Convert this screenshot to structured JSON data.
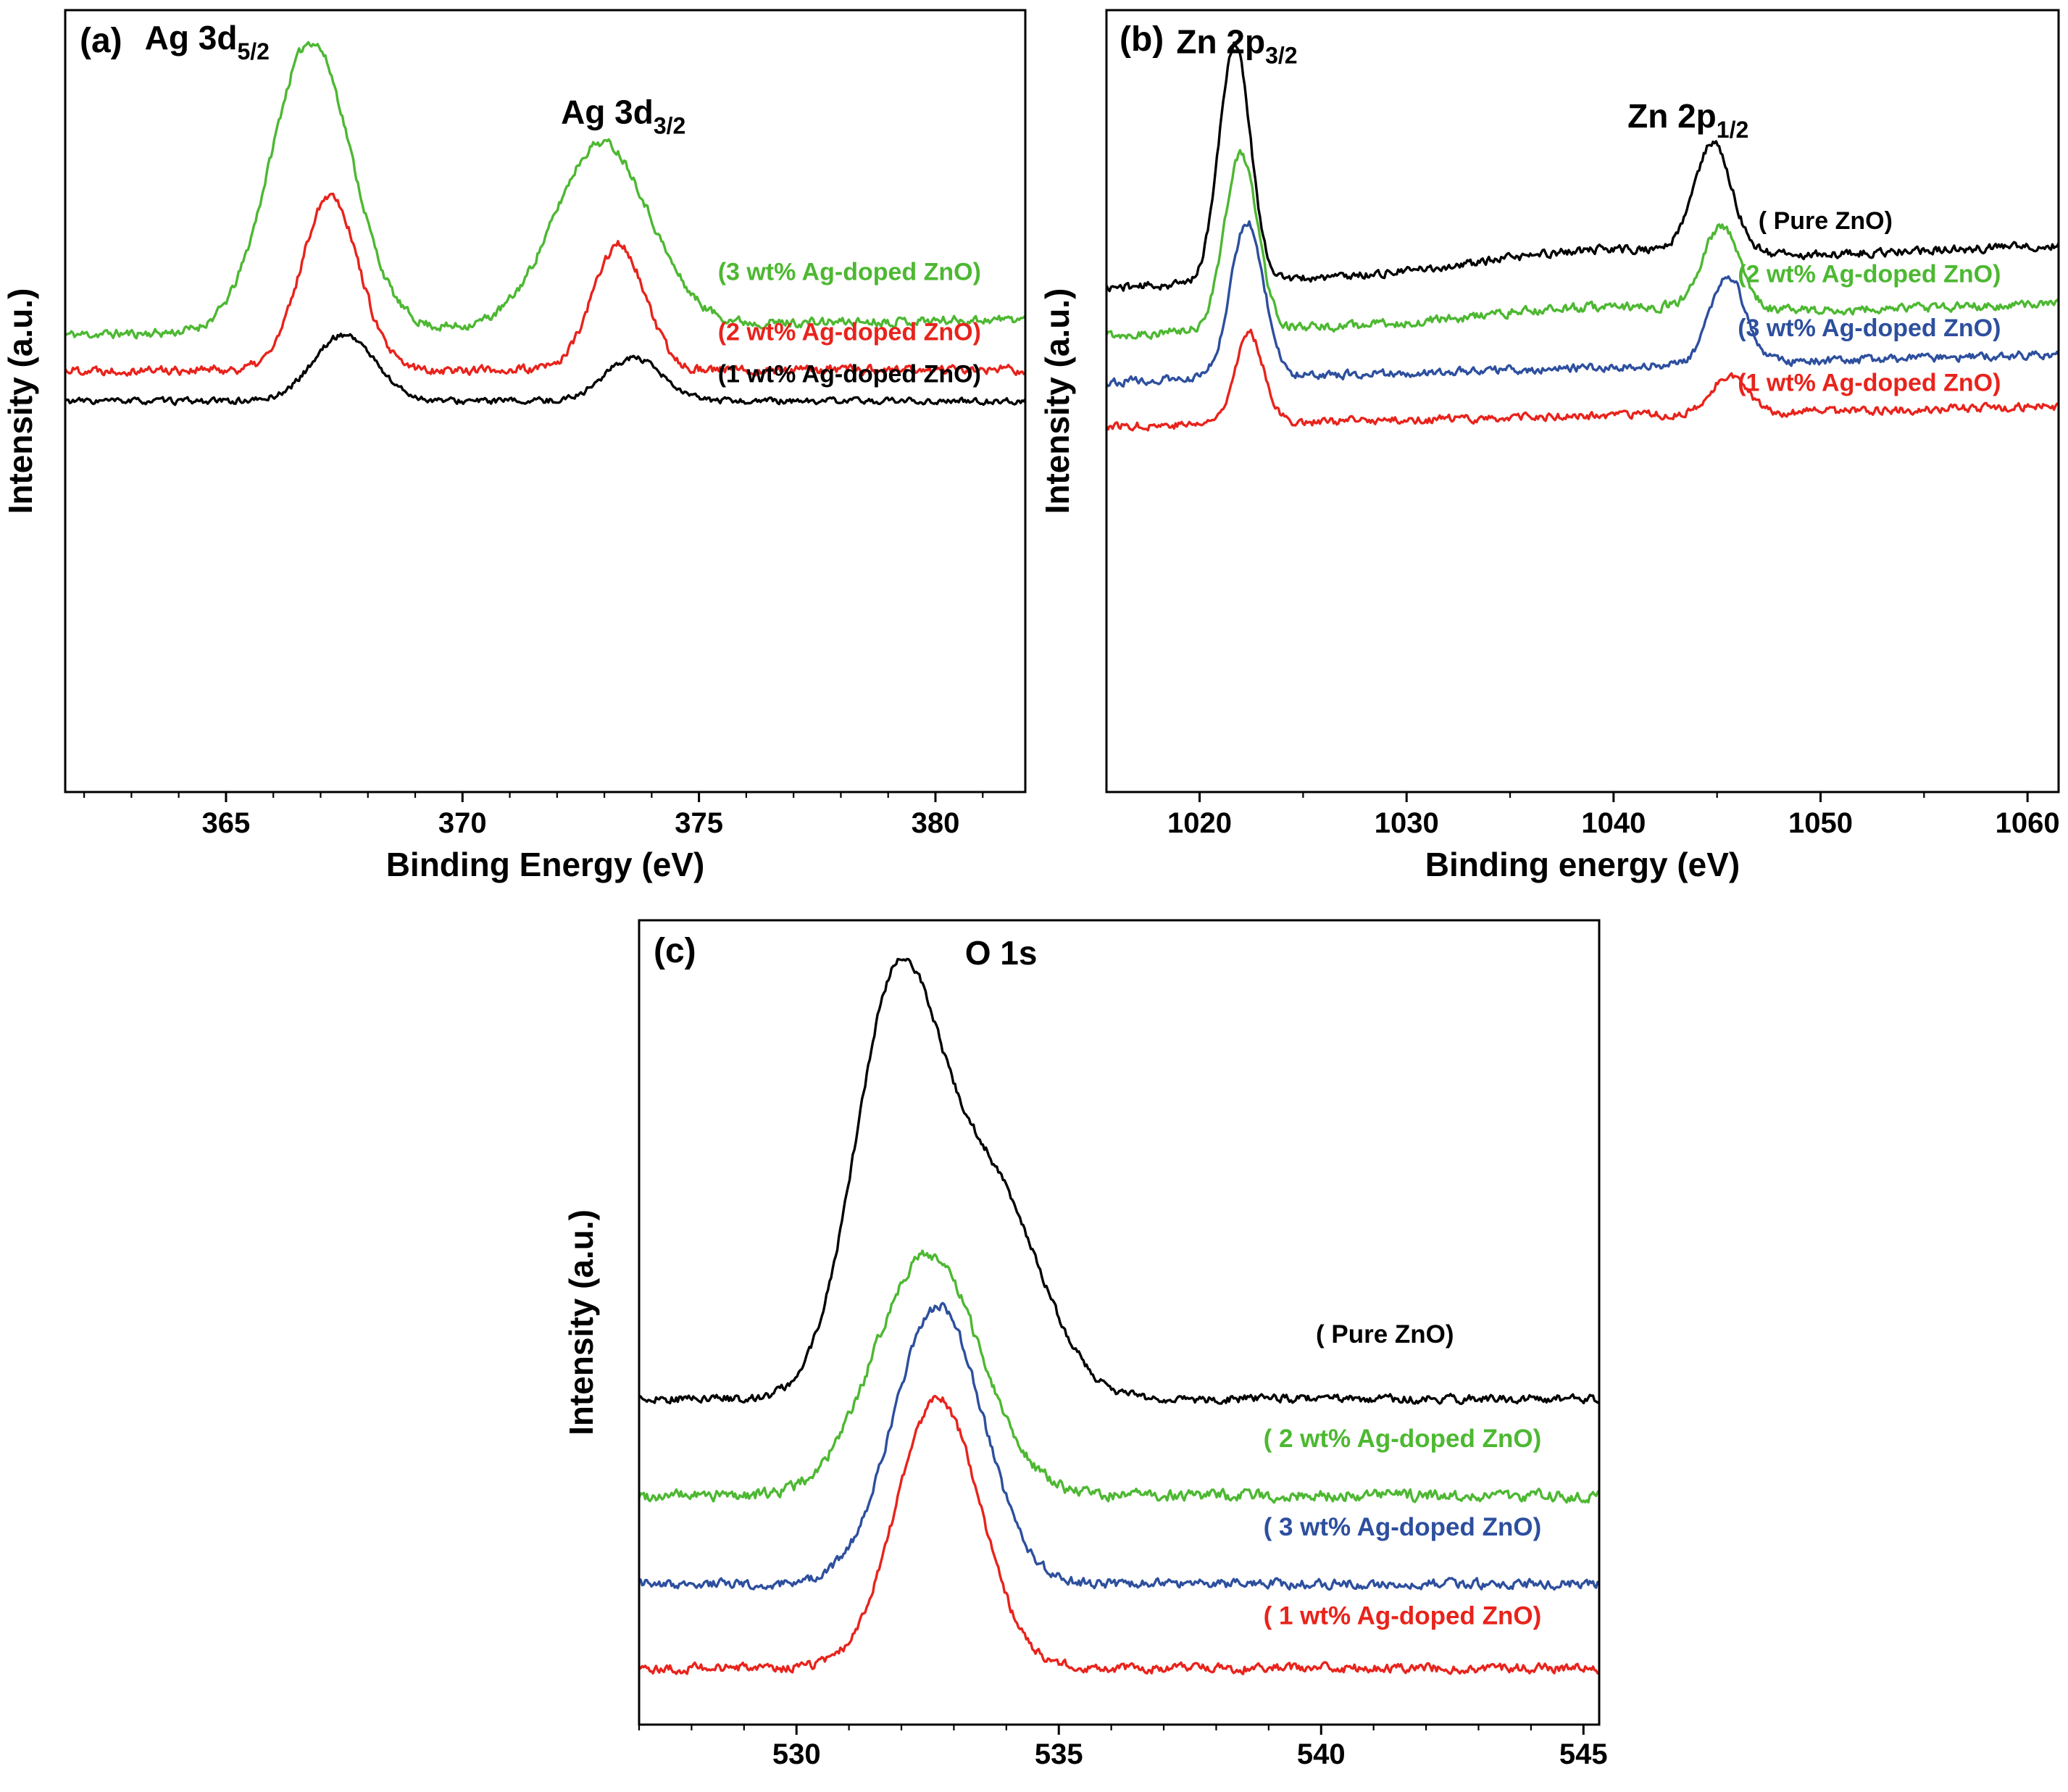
{
  "figure": {
    "background": "#ffffff",
    "description_visible_text_only": true
  },
  "chart_data": [
    {
      "type": "line",
      "panel": "a",
      "panel_tag": "(a)",
      "xlabel": "Binding Energy (eV)",
      "ylabel": "Intensity (a.u.)",
      "x_range": [
        361.6,
        381.9
      ],
      "x_ticks": [
        365,
        370,
        375,
        380
      ],
      "x_minor_step": 1,
      "y_axis_note": "arbitrary units, no y ticks",
      "grid": false,
      "peak_labels": [
        {
          "text": "Ag 3d",
          "sub": "5/2",
          "x": 364.6,
          "y": 0.95,
          "anchor": "middle"
        },
        {
          "text": "Ag 3d",
          "sub": "3/2",
          "x": 373.4,
          "y": 0.855,
          "anchor": "middle"
        }
      ],
      "series": [
        {
          "name": "3 wt% Ag-doped ZnO",
          "legend": "(3 wt% Ag-doped ZnO)",
          "color": "#4db832",
          "baseline": 0.585,
          "slope": 0.02,
          "noise": 0.009,
          "seed": 11,
          "peaks": [
            {
              "center": 366.8,
              "amp": 0.37,
              "sigma": 0.85
            },
            {
              "center": 372.95,
              "amp": 0.235,
              "sigma": 1.0
            }
          ],
          "label_x": 375.4,
          "label_y": 0.655
        },
        {
          "name": "2 wt% Ag-doped ZnO",
          "legend": "(2 wt% Ag-doped ZnO)",
          "color": "#e8231c",
          "baseline": 0.54,
          "slope": 0.0,
          "noise": 0.009,
          "seed": 22,
          "peaks": [
            {
              "center": 367.2,
              "amp": 0.225,
              "sigma": 0.6
            },
            {
              "center": 373.3,
              "amp": 0.16,
              "sigma": 0.55
            }
          ],
          "label_x": 375.4,
          "label_y": 0.578
        },
        {
          "name": "1 wt% Ag-doped ZnO",
          "legend": "(1 wt% Ag-doped ZnO)",
          "color": "#000000",
          "baseline": 0.5,
          "slope": 0.0,
          "noise": 0.006,
          "seed": 33,
          "peaks": [
            {
              "center": 367.5,
              "amp": 0.085,
              "sigma": 0.65
            },
            {
              "center": 373.6,
              "amp": 0.055,
              "sigma": 0.6
            }
          ],
          "label_x": 375.4,
          "label_y": 0.524
        }
      ]
    },
    {
      "type": "line",
      "panel": "b",
      "panel_tag": "(b)",
      "xlabel": "Binding energy (eV)",
      "ylabel": "Intensity (a.u.)",
      "x_range": [
        1015.5,
        1061.5
      ],
      "x_ticks": [
        1020,
        1030,
        1040,
        1050,
        1060
      ],
      "x_minor_step": 5,
      "y_axis_note": "arbitrary units, no y ticks",
      "grid": false,
      "peak_labels": [
        {
          "text": "Zn 2p",
          "sub": "3/2",
          "x": 1021.8,
          "y": 0.945,
          "anchor": "middle"
        },
        {
          "text": "Zn 2p",
          "sub": "1/2",
          "x": 1043.6,
          "y": 0.85,
          "anchor": "middle"
        }
      ],
      "series": [
        {
          "name": "Pure ZnO",
          "legend": "( Pure ZnO)",
          "color": "#000000",
          "baseline": 0.645,
          "slope": 0.055,
          "noise": 0.008,
          "seed": 44,
          "peaks": [
            {
              "center": 1021.7,
              "amp": 0.305,
              "sigma": 0.75
            },
            {
              "center": 1044.8,
              "amp": 0.14,
              "sigma": 0.9
            },
            {
              "center": 1039.0,
              "amp": 0.02,
              "sigma": 5.0
            }
          ],
          "label_x": 1047.0,
          "label_y": 0.72
        },
        {
          "name": "2 wt% Ag-doped ZnO",
          "legend": "(2 wt% Ag-doped ZnO)",
          "color": "#4db832",
          "baseline": 0.585,
          "slope": 0.04,
          "noise": 0.009,
          "seed": 55,
          "peaks": [
            {
              "center": 1022.0,
              "amp": 0.225,
              "sigma": 0.8
            },
            {
              "center": 1045.2,
              "amp": 0.105,
              "sigma": 0.9
            },
            {
              "center": 1039.0,
              "amp": 0.015,
              "sigma": 5.0
            }
          ],
          "label_x": 1046.0,
          "label_y": 0.652
        },
        {
          "name": "3 wt% Ag-doped ZnO",
          "legend": "(3 wt% Ag-doped ZnO)",
          "color": "#2d4f9e",
          "baseline": 0.525,
          "slope": 0.035,
          "noise": 0.008,
          "seed": 66,
          "peaks": [
            {
              "center": 1022.3,
              "amp": 0.2,
              "sigma": 0.8
            },
            {
              "center": 1045.5,
              "amp": 0.115,
              "sigma": 0.85
            }
          ],
          "label_x": 1046.0,
          "label_y": 0.583
        },
        {
          "name": "1 wt% Ag-doped ZnO",
          "legend": "(1 wt% Ag-doped ZnO)",
          "color": "#e8231c",
          "baseline": 0.468,
          "slope": 0.025,
          "noise": 0.008,
          "seed": 77,
          "peaks": [
            {
              "center": 1022.4,
              "amp": 0.115,
              "sigma": 0.7
            },
            {
              "center": 1045.6,
              "amp": 0.05,
              "sigma": 0.8
            }
          ],
          "label_x": 1046.0,
          "label_y": 0.513
        }
      ]
    },
    {
      "type": "line",
      "panel": "c",
      "panel_tag": "(c)",
      "xlabel": "Binding energy (eV)",
      "ylabel": "Intensity (a.u.)",
      "x_range": [
        527.0,
        545.3
      ],
      "x_ticks": [
        530,
        535,
        540,
        545
      ],
      "x_minor_step": 1,
      "y_axis_note": "arbitrary units, no y ticks",
      "grid": false,
      "peak_labels": [
        {
          "text": "O 1s",
          "sub": "",
          "x": 533.9,
          "y": 0.945,
          "anchor": "middle"
        }
      ],
      "series": [
        {
          "name": "Pure ZnO",
          "legend": "( Pure ZnO)",
          "color": "#000000",
          "baseline": 0.405,
          "slope": 0.0,
          "noise": 0.008,
          "seed": 88,
          "peaks": [
            {
              "center": 531.9,
              "amp": 0.5,
              "sigma": 0.8
            },
            {
              "center": 533.7,
              "amp": 0.26,
              "sigma": 0.95
            }
          ],
          "label_x": 539.9,
          "label_y": 0.475
        },
        {
          "name": "2 wt% Ag-doped ZnO",
          "legend": "( 2 wt% Ag-doped ZnO)",
          "color": "#4db832",
          "baseline": 0.285,
          "slope": 0.0,
          "noise": 0.011,
          "seed": 99,
          "peaks": [
            {
              "center": 532.5,
              "amp": 0.3,
              "sigma": 1.0
            }
          ],
          "label_x": 538.9,
          "label_y": 0.345
        },
        {
          "name": "3 wt% Ag-doped ZnO",
          "legend": "( 3 wt% Ag-doped ZnO)",
          "color": "#2d4f9e",
          "baseline": 0.175,
          "slope": 0.0,
          "noise": 0.009,
          "seed": 111,
          "peaks": [
            {
              "center": 532.7,
              "amp": 0.345,
              "sigma": 0.85
            }
          ],
          "label_x": 538.9,
          "label_y": 0.235
        },
        {
          "name": "1 wt% Ag-doped ZnO",
          "legend": "( 1 wt% Ag-doped ZnO)",
          "color": "#e8231c",
          "baseline": 0.07,
          "slope": 0.0,
          "noise": 0.009,
          "seed": 122,
          "peaks": [
            {
              "center": 532.7,
              "amp": 0.335,
              "sigma": 0.8
            }
          ],
          "label_x": 538.9,
          "label_y": 0.125
        }
      ]
    }
  ]
}
